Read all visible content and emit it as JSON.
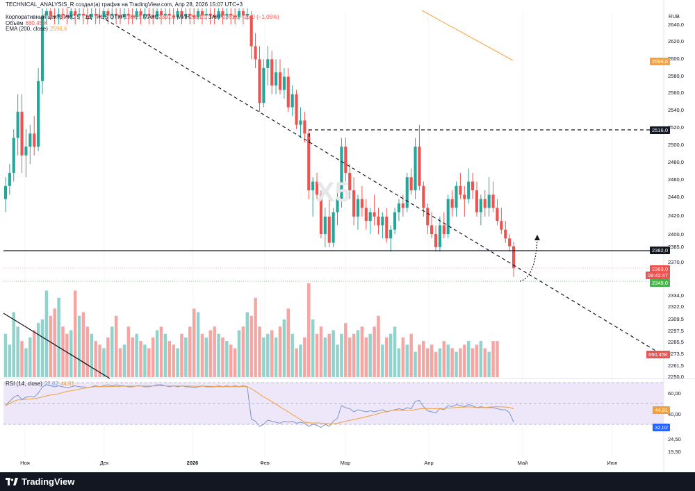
{
  "header": {
    "caption": "TECHNICAL_ANALYSIS_R создал(а) график на TradingView.com, Апр 28, 2026 15:07 UTC+3",
    "symbol": "Корпоративный центр ИКС 5 · 1Д · RUS",
    "ohlc": {
      "o_label": "ОТКР",
      "o": "2386,5",
      "h_label": "МАКС",
      "h": "2391,0",
      "l_label": "МИН",
      "l": "2351,0",
      "c_label": "ЗАКР",
      "c": "2361,0",
      "change": "−25,0 (−1,05%)"
    },
    "volume_label": "Объём",
    "volume_value": "660,45 K",
    "ema_label": "EMA (200, close)",
    "ema_value": "2596,6",
    "rsi_label": "RSI (14, close)",
    "rsi_value": "32,02",
    "rsi_ma_value": "44,81"
  },
  "watermark": "X5",
  "currency": "RUB",
  "price_ticks": [
    "2640,0",
    "2620,0",
    "2600,0",
    "2580,0",
    "2560,0",
    "2540,0",
    "2520,0",
    "2500,0",
    "2480,0",
    "2460,0",
    "2440,0",
    "2420,0",
    "2400,0",
    "2385,0",
    "2370,0",
    "2334,0",
    "2322,0",
    "2309,5",
    "2297,5",
    "2285,5",
    "2273,5",
    "2261,5",
    "2250,0"
  ],
  "rsi_ticks": [
    "60,00",
    "40,00",
    "24,50",
    "19,50"
  ],
  "time_ticks": [
    "Ноя",
    "Дек",
    "2026",
    "Фев",
    "Мар",
    "Апр",
    "Май",
    "Июн"
  ],
  "price_tags": {
    "ema": "2596,6",
    "level_high": "2516,0",
    "level_support": "2382,0",
    "last": "2363,0",
    "countdown": "08:42:47",
    "low": "2349,0",
    "volume": "660,45K",
    "rsi_ma": "44,81",
    "rsi": "32,02"
  },
  "colors": {
    "up": "#26a69a",
    "down": "#ef5350",
    "vol_up": "#8fd3cc",
    "vol_down": "#f6a5a3",
    "ema": "#f7a23b",
    "rsi": "#7e96c9",
    "rsi_ma": "#f3a03a",
    "rsi_band": "#ede7f9"
  },
  "chart_data": {
    "type": "candlestick",
    "ylim": [
      2250,
      2650
    ],
    "candles": [
      [
        2440,
        2465,
        2425,
        2455
      ],
      [
        2455,
        2480,
        2445,
        2470
      ],
      [
        2470,
        2520,
        2460,
        2510
      ],
      [
        2510,
        2560,
        2490,
        2540
      ],
      [
        2540,
        2560,
        2470,
        2490
      ],
      [
        2490,
        2520,
        2465,
        2500
      ],
      [
        2500,
        2525,
        2480,
        2515
      ],
      [
        2515,
        2535,
        2490,
        2500
      ],
      [
        2500,
        2590,
        2495,
        2575
      ],
      [
        2575,
        2660,
        2560,
        2650
      ],
      [
        2650,
        2660,
        2640,
        2655
      ],
      [
        2655,
        2660,
        2645,
        2650
      ],
      [
        2650,
        2660,
        2640,
        2648
      ],
      [
        2648,
        2660,
        2640,
        2652
      ],
      [
        2652,
        2660,
        2645,
        2650
      ],
      [
        2650,
        2660,
        2640,
        2648
      ],
      [
        2648,
        2660,
        2645,
        2655
      ],
      [
        2655,
        2660,
        2640,
        2650
      ],
      [
        2650,
        2660,
        2645,
        2652
      ],
      [
        2652,
        2660,
        2640,
        2650
      ],
      [
        2650,
        2660,
        2640,
        2648
      ],
      [
        2648,
        2660,
        2645,
        2652
      ],
      [
        2652,
        2660,
        2640,
        2650
      ],
      [
        2650,
        2660,
        2640,
        2648
      ],
      [
        2648,
        2660,
        2645,
        2655
      ],
      [
        2655,
        2660,
        2640,
        2650
      ],
      [
        2650,
        2660,
        2645,
        2652
      ],
      [
        2652,
        2660,
        2640,
        2650
      ],
      [
        2650,
        2660,
        2640,
        2648
      ],
      [
        2648,
        2660,
        2645,
        2652
      ],
      [
        2652,
        2660,
        2640,
        2650
      ],
      [
        2650,
        2660,
        2640,
        2648
      ],
      [
        2648,
        2660,
        2645,
        2655
      ],
      [
        2655,
        2660,
        2640,
        2650
      ],
      [
        2650,
        2660,
        2645,
        2652
      ],
      [
        2652,
        2660,
        2640,
        2650
      ],
      [
        2650,
        2660,
        2640,
        2648
      ],
      [
        2648,
        2660,
        2645,
        2655
      ],
      [
        2655,
        2660,
        2640,
        2650
      ],
      [
        2650,
        2660,
        2645,
        2652
      ],
      [
        2652,
        2660,
        2640,
        2650
      ],
      [
        2650,
        2660,
        2640,
        2648
      ],
      [
        2648,
        2660,
        2645,
        2655
      ],
      [
        2655,
        2660,
        2640,
        2650
      ],
      [
        2650,
        2660,
        2645,
        2652
      ],
      [
        2652,
        2660,
        2640,
        2650
      ],
      [
        2650,
        2660,
        2640,
        2648
      ],
      [
        2648,
        2660,
        2645,
        2655
      ],
      [
        2655,
        2660,
        2640,
        2650
      ],
      [
        2650,
        2660,
        2645,
        2652
      ],
      [
        2652,
        2660,
        2640,
        2650
      ],
      [
        2650,
        2660,
        2640,
        2648
      ],
      [
        2648,
        2660,
        2645,
        2655
      ],
      [
        2655,
        2660,
        2640,
        2650
      ],
      [
        2650,
        2660,
        2645,
        2652
      ],
      [
        2652,
        2660,
        2640,
        2650
      ],
      [
        2650,
        2660,
        2640,
        2648
      ],
      [
        2648,
        2660,
        2645,
        2655
      ],
      [
        2655,
        2660,
        2640,
        2650
      ],
      [
        2650,
        2660,
        2645,
        2652
      ],
      [
        2650,
        2655,
        2600,
        2615
      ],
      [
        2615,
        2630,
        2590,
        2600
      ],
      [
        2600,
        2615,
        2540,
        2550
      ],
      [
        2550,
        2600,
        2545,
        2590
      ],
      [
        2590,
        2615,
        2570,
        2600
      ],
      [
        2600,
        2610,
        2560,
        2570
      ],
      [
        2570,
        2600,
        2560,
        2585
      ],
      [
        2585,
        2600,
        2560,
        2565
      ],
      [
        2565,
        2590,
        2555,
        2580
      ],
      [
        2580,
        2590,
        2540,
        2545
      ],
      [
        2545,
        2570,
        2535,
        2560
      ],
      [
        2560,
        2565,
        2520,
        2525
      ],
      [
        2525,
        2545,
        2510,
        2530
      ],
      [
        2530,
        2540,
        2505,
        2515
      ],
      [
        2515,
        2520,
        2440,
        2450
      ],
      [
        2450,
        2465,
        2420,
        2460
      ],
      [
        2460,
        2470,
        2440,
        2445
      ],
      [
        2445,
        2450,
        2395,
        2400
      ],
      [
        2400,
        2430,
        2385,
        2420
      ],
      [
        2420,
        2440,
        2385,
        2390
      ],
      [
        2390,
        2430,
        2385,
        2425
      ],
      [
        2425,
        2450,
        2410,
        2440
      ],
      [
        2440,
        2510,
        2430,
        2500
      ],
      [
        2500,
        2510,
        2460,
        2470
      ],
      [
        2470,
        2480,
        2440,
        2450
      ],
      [
        2450,
        2465,
        2410,
        2420
      ],
      [
        2420,
        2445,
        2405,
        2440
      ],
      [
        2440,
        2455,
        2420,
        2430
      ],
      [
        2430,
        2440,
        2405,
        2415
      ],
      [
        2415,
        2430,
        2400,
        2425
      ],
      [
        2425,
        2445,
        2410,
        2420
      ],
      [
        2420,
        2430,
        2400,
        2410
      ],
      [
        2410,
        2425,
        2395,
        2420
      ],
      [
        2420,
        2430,
        2390,
        2395
      ],
      [
        2395,
        2410,
        2380,
        2405
      ],
      [
        2405,
        2430,
        2400,
        2425
      ],
      [
        2425,
        2440,
        2415,
        2435
      ],
      [
        2435,
        2445,
        2420,
        2430
      ],
      [
        2430,
        2470,
        2425,
        2465
      ],
      [
        2465,
        2475,
        2445,
        2450
      ],
      [
        2450,
        2510,
        2440,
        2500
      ],
      [
        2500,
        2525,
        2450,
        2455
      ],
      [
        2455,
        2460,
        2420,
        2430
      ],
      [
        2430,
        2435,
        2400,
        2410
      ],
      [
        2410,
        2425,
        2395,
        2400
      ],
      [
        2400,
        2410,
        2380,
        2385
      ],
      [
        2385,
        2420,
        2380,
        2410
      ],
      [
        2410,
        2425,
        2395,
        2400
      ],
      [
        2400,
        2445,
        2395,
        2440
      ],
      [
        2440,
        2450,
        2420,
        2430
      ],
      [
        2430,
        2460,
        2420,
        2455
      ],
      [
        2455,
        2470,
        2440,
        2445
      ],
      [
        2445,
        2455,
        2420,
        2440
      ],
      [
        2440,
        2475,
        2435,
        2460
      ],
      [
        2460,
        2470,
        2440,
        2450
      ],
      [
        2450,
        2460,
        2420,
        2425
      ],
      [
        2425,
        2445,
        2410,
        2440
      ],
      [
        2440,
        2450,
        2420,
        2430
      ],
      [
        2430,
        2465,
        2420,
        2445
      ],
      [
        2445,
        2460,
        2425,
        2430
      ],
      [
        2430,
        2440,
        2410,
        2415
      ],
      [
        2415,
        2430,
        2400,
        2405
      ],
      [
        2405,
        2415,
        2390,
        2395
      ],
      [
        2395,
        2400,
        2380,
        2386
      ],
      [
        2386,
        2391,
        2351,
        2361
      ]
    ],
    "volume": [
      60,
      45,
      90,
      70,
      50,
      40,
      55,
      65,
      75,
      80,
      120,
      85,
      95,
      110,
      70,
      60,
      65,
      120,
      85,
      90,
      70,
      60,
      50,
      45,
      40,
      55,
      70,
      85,
      40,
      45,
      70,
      55,
      60,
      50,
      45,
      40,
      55,
      65,
      70,
      60,
      50,
      45,
      40,
      60,
      55,
      70,
      95,
      90,
      60,
      55,
      65,
      70,
      60,
      55,
      50,
      45,
      40,
      65,
      70,
      90,
      85,
      110,
      70,
      55,
      60,
      65,
      55,
      70,
      80,
      95,
      60,
      40,
      45,
      55,
      130,
      80,
      60,
      70,
      55,
      60,
      65,
      45,
      60,
      75,
      55,
      60,
      65,
      70,
      55,
      60,
      70,
      85,
      45,
      55,
      60,
      70,
      40,
      55,
      45,
      60,
      35,
      45,
      50,
      40,
      45,
      35,
      40,
      50,
      45,
      40,
      35,
      40,
      45,
      50,
      40,
      45,
      50,
      40,
      35,
      50,
      50
    ],
    "rsi": [
      48,
      52,
      56,
      58,
      54,
      56,
      57,
      56,
      60,
      66,
      68,
      67,
      66,
      67,
      66,
      65,
      66,
      67,
      66,
      66,
      65,
      66,
      67,
      66,
      67,
      68,
      67,
      68,
      67,
      67,
      66,
      66,
      67,
      67,
      66,
      66,
      67,
      68,
      68,
      67,
      66,
      67,
      66,
      67,
      66,
      66,
      65,
      66,
      67,
      66,
      66,
      66,
      67,
      66,
      67,
      66,
      67,
      66,
      67,
      66,
      35,
      33,
      28,
      30,
      34,
      33,
      32,
      31,
      33,
      32,
      33,
      31,
      32,
      31,
      28,
      30,
      29,
      27,
      30,
      28,
      33,
      36,
      48,
      46,
      45,
      42,
      44,
      43,
      42,
      43,
      42,
      43,
      44,
      42,
      43,
      44,
      45,
      44,
      46,
      45,
      52,
      53,
      47,
      43,
      42,
      41,
      45,
      44,
      48,
      47,
      49,
      48,
      47,
      49,
      48,
      46,
      47,
      46,
      46,
      46,
      45,
      44,
      44,
      41,
      32
    ],
    "ema": [
      2630,
      2628,
      2625,
      2622,
      2619,
      2616,
      2613,
      2610,
      2606,
      2602,
      2598,
      2596.6
    ],
    "lines": {
      "resistance_level": 2516,
      "support_level": 2382,
      "last_price": 2363,
      "low_price": 2349
    }
  }
}
